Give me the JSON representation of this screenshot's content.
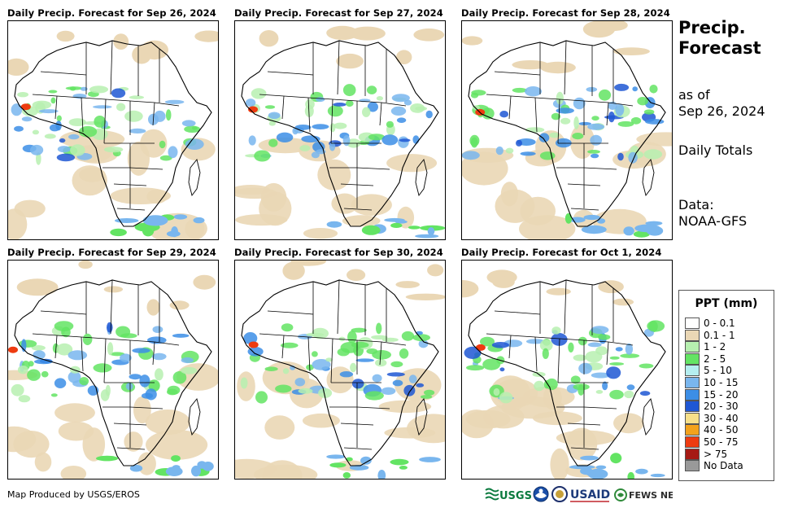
{
  "panels": [
    {
      "title": "Daily Precip. Forecast for Sep 26, 2024"
    },
    {
      "title": "Daily Precip. Forecast for Sep 27, 2024"
    },
    {
      "title": "Daily Precip. Forecast for Sep 28, 2024"
    },
    {
      "title": "Daily Precip. Forecast for Sep 29, 2024"
    },
    {
      "title": "Daily Precip. Forecast for Sep 30, 2024"
    },
    {
      "title": "Daily Precip. Forecast for Oct 1, 2024"
    }
  ],
  "sidebar": {
    "title_line1": "Precip.",
    "title_line2": "Forecast",
    "asof_line1": "as of",
    "asof_line2": "Sep 26, 2024",
    "totals": "Daily Totals",
    "data_line1": "Data:",
    "data_line2": "NOAA-GFS"
  },
  "legend": {
    "title": "PPT (mm)",
    "items": [
      {
        "label": "0 - 0.1",
        "color": "#ffffff"
      },
      {
        "label": "0.1 - 1",
        "color": "#ead7b5"
      },
      {
        "label": "1 - 2",
        "color": "#b7f0b0"
      },
      {
        "label": "2 - 5",
        "color": "#63e463"
      },
      {
        "label": "5 - 10",
        "color": "#b5eef0"
      },
      {
        "label": "10 - 15",
        "color": "#79b6ee"
      },
      {
        "label": "15 - 20",
        "color": "#3c8ee6"
      },
      {
        "label": "20 - 30",
        "color": "#1f57d4"
      },
      {
        "label": "30 - 40",
        "color": "#f7e08a"
      },
      {
        "label": "40 - 50",
        "color": "#f3a21c"
      },
      {
        "label": "50 - 75",
        "color": "#ee3b10"
      },
      {
        "label": "> 75",
        "color": "#a61a14"
      },
      {
        "label": "No Data",
        "color": "#999999"
      }
    ]
  },
  "footer": {
    "credit": "Map Produced by USGS/EROS",
    "logo_usgs": "USGS",
    "logo_usaid": "USAID",
    "logo_fews": "FEWS NET"
  }
}
